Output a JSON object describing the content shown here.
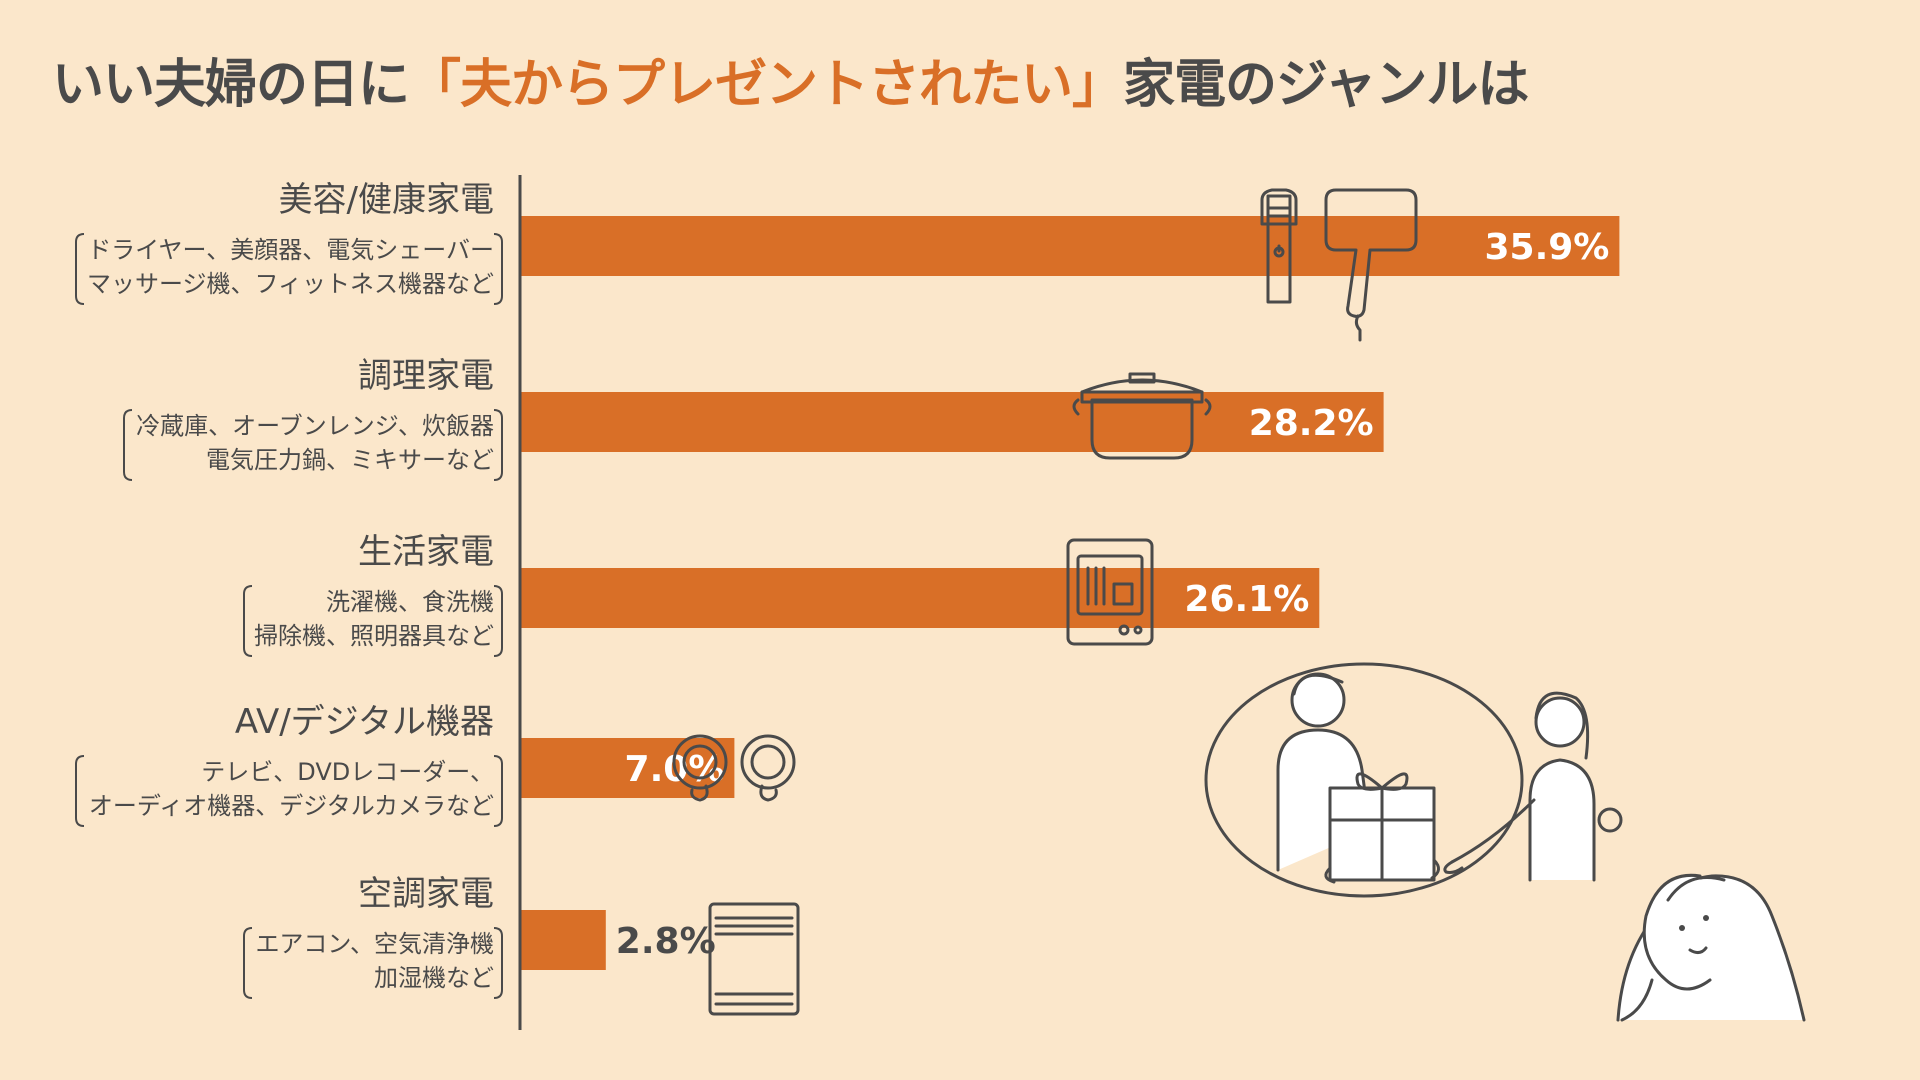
{
  "title": {
    "prefix": "いい夫婦の日に",
    "highlight": "「夫からプレゼントされたい」",
    "suffix": "家電のジャンルは"
  },
  "colors": {
    "bar": "#D96F27",
    "background": "#FBE7CB",
    "text": "#4A4A4A"
  },
  "chart_data": {
    "type": "bar",
    "orientation": "horizontal",
    "categories": [
      "美容/健康家電",
      "調理家電",
      "生活家電",
      "AV/デジタル機器",
      "空調家電"
    ],
    "subcategories": [
      [
        "ドライヤー、美顔器、電気シェーバー",
        "マッサージ機、フィットネス機器など"
      ],
      [
        "冷蔵庫、オーブンレンジ、炊飯器",
        "電気圧力鍋、ミキサーなど"
      ],
      [
        "洗濯機、食洗機",
        "掃除機、照明器具など"
      ],
      [
        "テレビ、DVDレコーダー、",
        "オーディオ機器、デジタルカメラなど"
      ],
      [
        "エアコン、空気清浄機",
        "加湿機など"
      ]
    ],
    "values": [
      35.9,
      28.2,
      26.1,
      7.0,
      2.8
    ],
    "value_labels": [
      "35.9%",
      "28.2%",
      "26.1%",
      "7.0%",
      "2.8%"
    ],
    "xlim": [
      0,
      40
    ],
    "grid": false,
    "icons": [
      "shaver-icon",
      "hair-dryer-icon",
      "pot-icon",
      "dishwasher-icon",
      "earbuds-icon",
      "air-purifier-icon"
    ]
  },
  "illustration": [
    "couple-gift-icon",
    "thinking-woman-icon"
  ]
}
